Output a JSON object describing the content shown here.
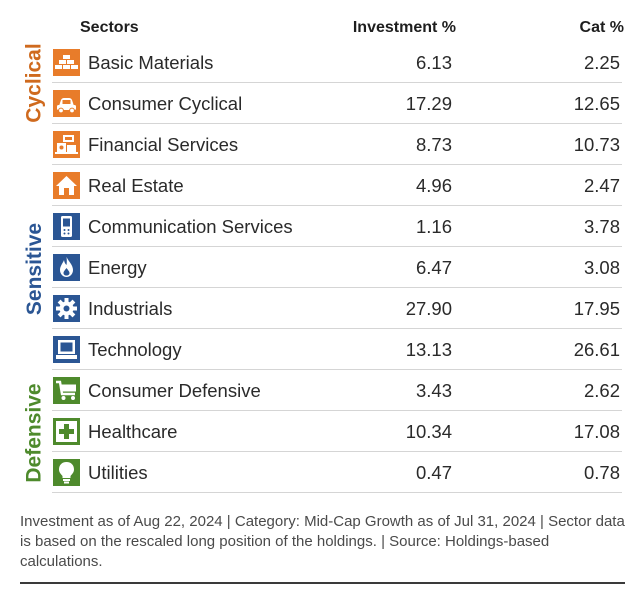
{
  "colors": {
    "cyclical": "#e87c2a",
    "sensitive": "#2b5694",
    "defensive": "#4e8a2c",
    "cyclical_label": "#cf6a1e"
  },
  "header": {
    "sectors": "Sectors",
    "investment": "Investment  %",
    "cat": "Cat  %"
  },
  "groups": {
    "cyclical": "Cyclical",
    "sensitive": "Sensitive",
    "defensive": "Defensive"
  },
  "rows": [
    {
      "name": "Basic Materials",
      "investment": "6.13",
      "cat": "2.25",
      "icon": "basic-materials-icon",
      "group": "cyclical"
    },
    {
      "name": "Consumer Cyclical",
      "investment": "17.29",
      "cat": "12.65",
      "icon": "car-icon",
      "group": "cyclical"
    },
    {
      "name": "Financial Services",
      "investment": "8.73",
      "cat": "10.73",
      "icon": "financial-services-icon",
      "group": "cyclical"
    },
    {
      "name": "Real Estate",
      "investment": "4.96",
      "cat": "2.47",
      "icon": "house-icon",
      "group": "cyclical"
    },
    {
      "name": "Communication Services",
      "investment": "1.16",
      "cat": "3.78",
      "icon": "phone-icon",
      "group": "sensitive"
    },
    {
      "name": "Energy",
      "investment": "6.47",
      "cat": "3.08",
      "icon": "flame-icon",
      "group": "sensitive"
    },
    {
      "name": "Industrials",
      "investment": "27.90",
      "cat": "17.95",
      "icon": "gear-icon",
      "group": "sensitive"
    },
    {
      "name": "Technology",
      "investment": "13.13",
      "cat": "26.61",
      "icon": "computer-icon",
      "group": "sensitive"
    },
    {
      "name": "Consumer Defensive",
      "investment": "3.43",
      "cat": "2.62",
      "icon": "cart-icon",
      "group": "defensive"
    },
    {
      "name": "Healthcare",
      "investment": "10.34",
      "cat": "17.08",
      "icon": "medical-cross-icon",
      "group": "defensive"
    },
    {
      "name": "Utilities",
      "investment": "0.47",
      "cat": "0.78",
      "icon": "lightbulb-icon",
      "group": "defensive"
    }
  ],
  "footnote": "Investment as of Aug 22, 2024 | Category: Mid-Cap Growth as of Jul 31, 2024 | Sector data is based on the rescaled long position of the holdings. | Source: Holdings-based calculations."
}
